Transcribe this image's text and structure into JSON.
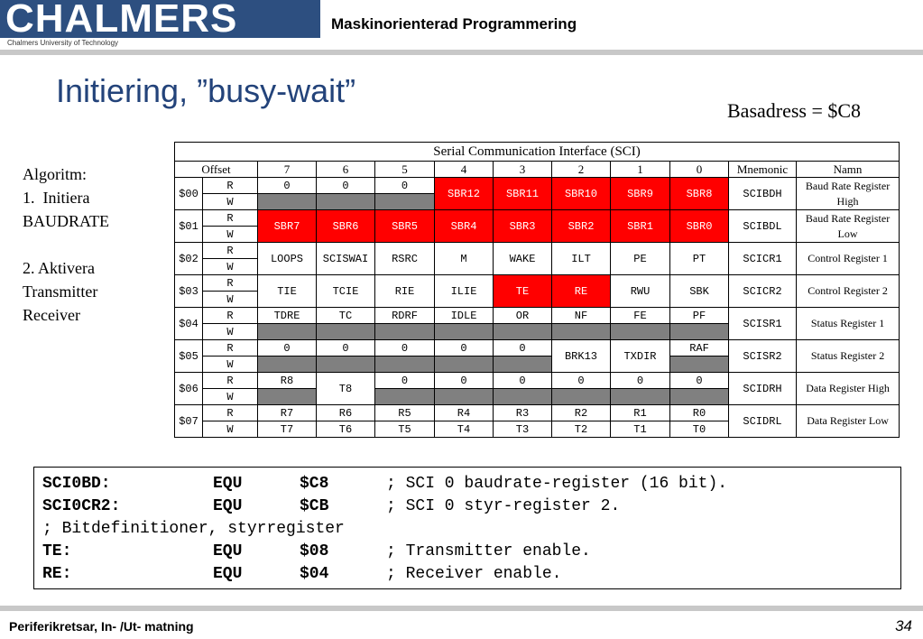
{
  "header": {
    "logo": "CHALMERS",
    "logo_sub": "Chalmers University of Technology",
    "course": "Maskinorienterad Programmering"
  },
  "title": "Initiering, ”busy-wait”",
  "basadress": "Basadress = $C8",
  "algorithm": {
    "l1": "Algoritm:",
    "l2": "1.  Initiera",
    "l3": "BAUDRATE",
    "l4": "2. Aktivera",
    "l5": "Transmitter",
    "l6": "Receiver"
  },
  "table": {
    "caption": "Serial Communication Interface (SCI)",
    "headers": [
      "Offset",
      "7",
      "6",
      "5",
      "4",
      "3",
      "2",
      "1",
      "0",
      "Mnemonic",
      "Namn"
    ],
    "rows": [
      {
        "offset": "$00",
        "r": [
          "0",
          "0",
          "0"
        ],
        "red": [
          "SBR12",
          "SBR11",
          "SBR10",
          "SBR9",
          "SBR8"
        ],
        "mnemonic": "SCIBDH",
        "namn": "Baud Rate Register High"
      },
      {
        "offset": "$01",
        "bits": [
          "SBR7",
          "SBR6",
          "SBR5",
          "SBR4",
          "SBR3",
          "SBR2",
          "SBR1",
          "SBR0"
        ],
        "mnemonic": "SCIBDL",
        "namn": "Baud Rate Register Low"
      },
      {
        "offset": "$02",
        "bits": [
          "LOOPS",
          "SCISWAI",
          "RSRC",
          "M",
          "WAKE",
          "ILT",
          "PE",
          "PT"
        ],
        "mnemonic": "SCICR1",
        "namn": "Control Register 1"
      },
      {
        "offset": "$03",
        "bits": [
          "TIE",
          "TCIE",
          "RIE",
          "ILIE",
          "TE",
          "RE",
          "RWU",
          "SBK"
        ],
        "mnemonic": "SCICR2",
        "namn": "Control Register 2"
      },
      {
        "offset": "$04",
        "bits": [
          "TDRE",
          "TC",
          "RDRF",
          "IDLE",
          "OR",
          "NF",
          "FE",
          "PF"
        ],
        "mnemonic": "SCISR1",
        "namn": "Status Register 1"
      },
      {
        "offset": "$05",
        "r": [
          "0",
          "0",
          "0",
          "0",
          "0"
        ],
        "mid": [
          "BRK13",
          "TXDIR"
        ],
        "r0": "RAF",
        "mnemonic": "SCISR2",
        "namn": "Status Register 2"
      },
      {
        "offset": "$06",
        "r7": "R8",
        "t8": "T8",
        "r": [
          "0",
          "0",
          "0",
          "0",
          "0",
          "0"
        ],
        "mnemonic": "SCIDRH",
        "namn": "Data Register High"
      },
      {
        "offset": "$07",
        "r": [
          "R7",
          "R6",
          "R5",
          "R4",
          "R3",
          "R2",
          "R1",
          "R0"
        ],
        "w": [
          "T7",
          "T6",
          "T5",
          "T4",
          "T3",
          "T2",
          "T1",
          "T0"
        ],
        "mnemonic": "SCIDRL",
        "namn": "Data Register Low"
      }
    ],
    "r_label": "R",
    "w_label": "W"
  },
  "code": [
    {
      "label": "SCI0BD:",
      "op": "EQU",
      "arg": "$C8",
      "comment": "; SCI 0 baudrate-register (16 bit)."
    },
    {
      "label": "SCI0CR2:",
      "op": "EQU",
      "arg": "$CB",
      "comment": "; SCI 0 styr-register 2."
    },
    {
      "comment_only": "; Bitdefinitioner, styrregister"
    },
    {
      "label": "TE:",
      "op": "EQU",
      "arg": "$08",
      "comment": "; Transmitter enable."
    },
    {
      "label": "RE:",
      "op": "EQU",
      "arg": "$04",
      "comment": "; Receiver enable."
    }
  ],
  "footer": {
    "text": "Periferikretsar, In- /Ut- matning",
    "page": "34"
  },
  "colors": {
    "brand": "#2d4f80",
    "title": "#23437a",
    "highlight": "#ff0000",
    "reserved": "#808080"
  }
}
